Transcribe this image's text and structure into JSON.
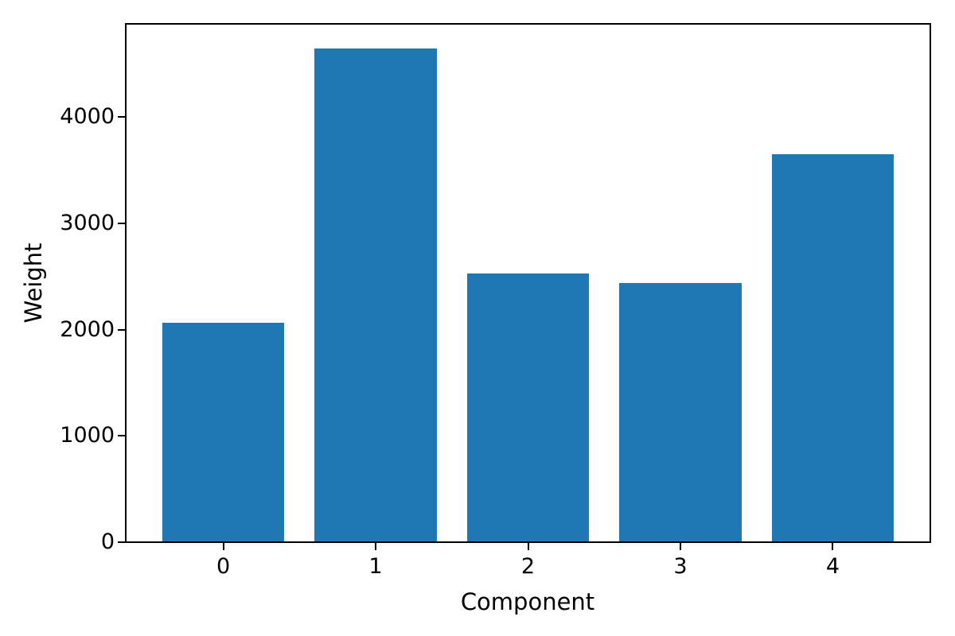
{
  "figure": {
    "background": "#ffffff"
  },
  "chart_data": {
    "type": "bar",
    "title": "",
    "categories": [
      "0",
      "1",
      "2",
      "3",
      "4"
    ],
    "values": [
      2060,
      4640,
      2530,
      2440,
      3650
    ],
    "xlabel": "Component",
    "ylabel": "Weight",
    "ylim": [
      0,
      4875
    ],
    "xlim": [
      -0.64,
      4.64
    ],
    "yticks": [
      0,
      1000,
      2000,
      3000,
      4000
    ],
    "ytick_labels": [
      "0",
      "1000",
      "2000",
      "3000",
      "4000"
    ],
    "bar_width": 0.8,
    "bar_color": "#1f77b4",
    "axis_color": "#000000",
    "text_color": "#000000",
    "grid": false,
    "legend_position": "none"
  }
}
